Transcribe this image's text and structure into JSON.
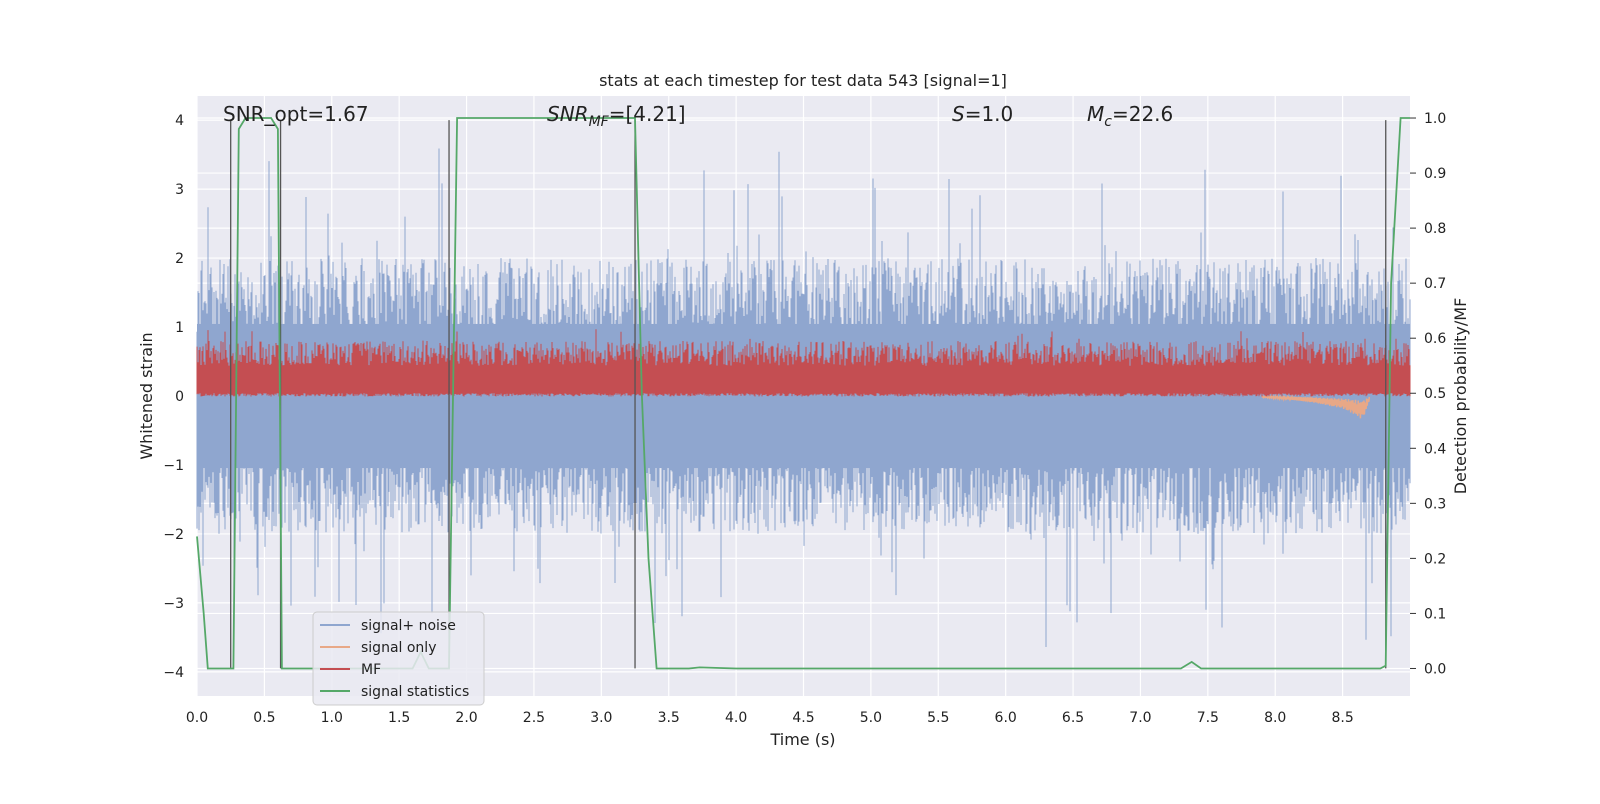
{
  "chart_data": {
    "type": "line",
    "title": "stats at each timestep for test data 543 [signal=1]",
    "xlabel": "Time (s)",
    "ylabel": "Whitened strain",
    "ylabel_right": "Detection probability/MF",
    "xlim": [
      0.0,
      9.0
    ],
    "ylim": [
      -4.35,
      4.35
    ],
    "ylim_right": [
      -0.05,
      1.04
    ],
    "xticks": [
      "0.0",
      "0.5",
      "1.0",
      "1.5",
      "2.0",
      "2.5",
      "3.0",
      "3.5",
      "4.0",
      "4.5",
      "5.0",
      "5.5",
      "6.0",
      "6.5",
      "7.0",
      "7.5",
      "8.0",
      "8.5"
    ],
    "xtick_values": [
      0.0,
      0.5,
      1.0,
      1.5,
      2.0,
      2.5,
      3.0,
      3.5,
      4.0,
      4.5,
      5.0,
      5.5,
      6.0,
      6.5,
      7.0,
      7.5,
      8.0,
      8.5
    ],
    "yticks": [
      "4",
      "3",
      "2",
      "1",
      "0",
      "−1",
      "−2",
      "−3",
      "−4"
    ],
    "ytick_values": [
      4,
      3,
      2,
      1,
      0,
      -1,
      -2,
      -3,
      -4
    ],
    "yticks_right": [
      "1.0",
      "0.9",
      "0.8",
      "0.7",
      "0.6",
      "0.5",
      "0.4",
      "0.3",
      "0.2",
      "0.1",
      "0.0"
    ],
    "ytick_right_values": [
      1.0,
      0.9,
      0.8,
      0.7,
      0.6,
      0.5,
      0.4,
      0.3,
      0.2,
      0.1,
      0.0
    ],
    "annotations": {
      "snr_opt": "SNR_opt=1.67",
      "snr_mf_base": "SNR",
      "snr_mf_sub": "MF",
      "snr_mf_rest": "=[4.21]",
      "s_var": "S",
      "s_rest": "=1.0",
      "mc_var": "M",
      "mc_sub": "c",
      "mc_rest": "=22.6"
    },
    "legend": {
      "position": "lower-left",
      "entries": [
        "signal+ noise",
        "signal only",
        "MF",
        "signal statistics"
      ]
    },
    "colors": {
      "noise": "#8fa6cf",
      "signal": "#e8a887",
      "mf": "#c44e52",
      "stat": "#55a868",
      "vline": "#555555",
      "plot_bg": "#eaeaf2",
      "grid": "#ffffff"
    },
    "vertical_lines_x": [
      0.25,
      0.62,
      1.87,
      3.25,
      8.82
    ],
    "series": [
      {
        "name": "signal statistics",
        "axis": "right",
        "x": [
          0.0,
          0.05,
          0.08,
          0.25,
          0.27,
          0.31,
          0.36,
          0.55,
          0.6,
          0.63,
          0.69,
          0.75,
          1.5,
          1.6,
          1.66,
          1.72,
          1.77,
          1.87,
          1.93,
          2.0,
          3.0,
          3.25,
          3.3,
          3.35,
          3.41,
          3.5,
          3.65,
          3.73,
          4.0,
          7.0,
          7.3,
          7.38,
          7.45,
          8.5,
          8.78,
          8.82,
          8.86,
          8.93,
          9.0
        ],
        "y": [
          0.24,
          0.1,
          0.0,
          0.0,
          0.0,
          0.98,
          1.0,
          1.0,
          0.98,
          0.0,
          0.0,
          0.0,
          0.0,
          0.0,
          0.03,
          0.0,
          0.0,
          0.0,
          1.0,
          1.0,
          1.0,
          1.0,
          0.5,
          0.2,
          0.0,
          0.0,
          0.0,
          0.002,
          0.0,
          0.0,
          0.0,
          0.012,
          0.0,
          0.0,
          0.0,
          0.005,
          0.7,
          1.0,
          1.0
        ]
      },
      {
        "name": "signal only",
        "axis": "left",
        "note": "chirp visible near t=8.0-8.7 s",
        "x": [
          7.9,
          8.1,
          8.3,
          8.5,
          8.6,
          8.65,
          8.7
        ],
        "amplitude": [
          0.02,
          0.05,
          0.1,
          0.18,
          0.28,
          0.35,
          0.05
        ]
      }
    ],
    "noise_band": {
      "name": "signal+ noise",
      "typical_range": [
        -1.9,
        1.9
      ],
      "peak_range": [
        -3.9,
        4.0
      ]
    },
    "mf_band": {
      "name": "MF",
      "axis": "right",
      "typical_range": [
        0.5,
        0.55
      ],
      "peak_max": 0.6
    }
  }
}
